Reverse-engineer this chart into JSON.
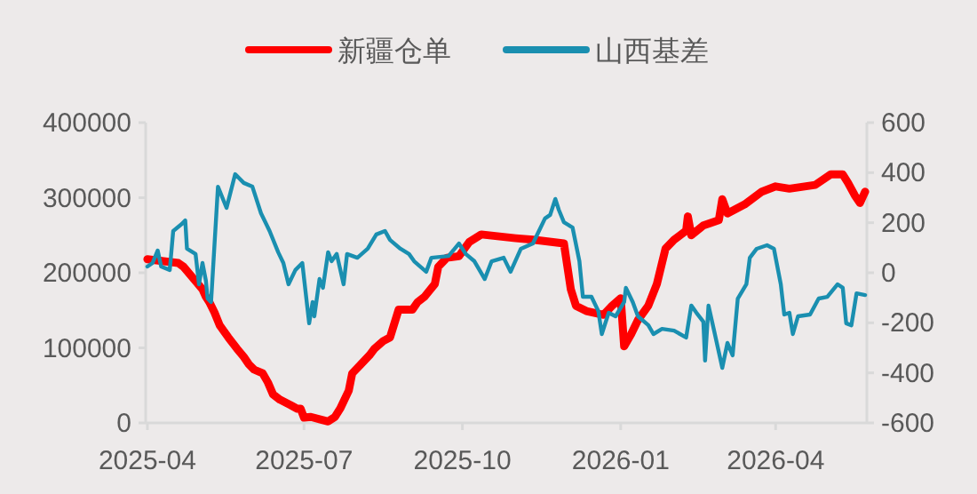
{
  "chart_data": {
    "type": "line",
    "legend": "top",
    "xlim": [
      "2025-03-31",
      "2026-05-24"
    ],
    "xticks": [
      "2025-04",
      "2025-07",
      "2025-10",
      "2026-01",
      "2026-04"
    ],
    "ylim": [
      0,
      400000
    ],
    "yticks": [
      0,
      100000,
      200000,
      300000,
      400000
    ],
    "y2lim": [
      -600,
      600
    ],
    "y2ticks": [
      -600,
      -400,
      -200,
      0,
      200,
      400,
      600
    ],
    "series": [
      {
        "name": "新疆仓单",
        "color": "#ff0000",
        "x": [
          "2025-04-01",
          "2025-04-19",
          "2025-04-22",
          "2025-04-29",
          "2025-05-03",
          "2025-05-05",
          "2025-05-07",
          "2025-05-10",
          "2025-05-13",
          "2025-05-18",
          "2025-05-23",
          "2025-05-27",
          "2025-05-30",
          "2025-06-02",
          "2025-06-07",
          "2025-06-10",
          "2025-06-13",
          "2025-06-17",
          "2025-06-23",
          "2025-06-27",
          "2025-06-29",
          "2025-07-01",
          "2025-07-05",
          "2025-07-10",
          "2025-07-15",
          "2025-07-19",
          "2025-07-22",
          "2025-07-27",
          "2025-07-29",
          "2025-08-03",
          "2025-08-08",
          "2025-08-11",
          "2025-08-16",
          "2025-08-20",
          "2025-08-25",
          "2025-09-02",
          "2025-09-05",
          "2025-09-09",
          "2025-09-15",
          "2025-09-17",
          "2025-09-22",
          "2025-09-29",
          "2025-10-05",
          "2025-10-12",
          "2025-11-01",
          "2025-11-11",
          "2025-11-29",
          "2025-12-03",
          "2025-12-06",
          "2025-12-12",
          "2025-12-22",
          "2025-12-27",
          "2026-01-01",
          "2026-01-03",
          "2026-01-07",
          "2026-01-11",
          "2026-01-17",
          "2026-01-22",
          "2026-01-27",
          "2026-02-01",
          "2026-02-08",
          "2026-02-09",
          "2026-02-11",
          "2026-02-18",
          "2026-02-27",
          "2026-03-01",
          "2026-03-04",
          "2026-03-14",
          "2026-03-24",
          "2026-04-01",
          "2026-04-09",
          "2026-04-24",
          "2026-05-03",
          "2026-05-10",
          "2026-05-13",
          "2026-05-17",
          "2026-05-20",
          "2026-05-23"
        ],
        "values": [
          218000,
          213000,
          208000,
          189000,
          178000,
          168000,
          161000,
          147000,
          130000,
          114000,
          99000,
          88000,
          78000,
          71000,
          66000,
          54000,
          38000,
          31000,
          24000,
          19000,
          19000,
          7000,
          8000,
          5000,
          2000,
          8000,
          19000,
          43000,
          66000,
          78000,
          90000,
          99000,
          109000,
          114000,
          151000,
          151000,
          161000,
          168000,
          185000,
          208000,
          220000,
          222000,
          241000,
          251000,
          246000,
          244000,
          239000,
          178000,
          156000,
          149000,
          144000,
          156000,
          166000,
          102000,
          118000,
          137000,
          156000,
          185000,
          232000,
          244000,
          256000,
          275000,
          250000,
          263000,
          270000,
          298000,
          279000,
          291000,
          308000,
          315000,
          312000,
          317000,
          331000,
          331000,
          320000,
          303000,
          293000,
          308000
        ]
      },
      {
        "name": "山西基差",
        "color": "#1a8fb0",
        "axis": "y2",
        "x": [
          "2025-04-01",
          "2025-04-04",
          "2025-04-07",
          "2025-04-09",
          "2025-04-14",
          "2025-04-16",
          "2025-04-21",
          "2025-04-23",
          "2025-04-24",
          "2025-04-29",
          "2025-05-01",
          "2025-05-03",
          "2025-05-05",
          "2025-05-06",
          "2025-05-08",
          "2025-05-12",
          "2025-05-17",
          "2025-05-22",
          "2025-05-27",
          "2025-06-01",
          "2025-06-06",
          "2025-06-11",
          "2025-06-16",
          "2025-06-19",
          "2025-06-22",
          "2025-06-26",
          "2025-06-30",
          "2025-07-04",
          "2025-07-06",
          "2025-07-07",
          "2025-07-10",
          "2025-07-12",
          "2025-07-15",
          "2025-07-17",
          "2025-07-20",
          "2025-07-24",
          "2025-07-26",
          "2025-08-01",
          "2025-08-07",
          "2025-08-12",
          "2025-08-17",
          "2025-08-20",
          "2025-08-26",
          "2025-08-31",
          "2025-09-03",
          "2025-09-10",
          "2025-09-13",
          "2025-09-23",
          "2025-09-29",
          "2025-10-03",
          "2025-10-08",
          "2025-10-14",
          "2025-10-18",
          "2025-10-25",
          "2025-10-29",
          "2025-11-04",
          "2025-11-11",
          "2025-11-18",
          "2025-11-21",
          "2025-11-24",
          "2025-11-26",
          "2025-11-29",
          "2025-12-04",
          "2025-12-08",
          "2025-12-10",
          "2025-12-15",
          "2025-12-19",
          "2025-12-21",
          "2025-12-25",
          "2025-12-29",
          "2026-01-03",
          "2026-01-04",
          "2026-01-08",
          "2026-01-11",
          "2026-01-17",
          "2026-01-20",
          "2026-01-25",
          "2026-02-01",
          "2026-02-08",
          "2026-02-11",
          "2026-02-14",
          "2026-02-18",
          "2026-02-19",
          "2026-02-21",
          "2026-02-24",
          "2026-03-01",
          "2026-03-04",
          "2026-03-07",
          "2026-03-10",
          "2026-03-15",
          "2026-03-17",
          "2026-03-21",
          "2026-03-27",
          "2026-03-31",
          "2026-04-04",
          "2026-04-06",
          "2026-04-09",
          "2026-04-11",
          "2026-04-14",
          "2026-04-21",
          "2026-04-26",
          "2026-05-01",
          "2026-05-07",
          "2026-05-10",
          "2026-05-12",
          "2026-05-15",
          "2026-05-18",
          "2026-05-23"
        ],
        "values": [
          25,
          39,
          89,
          25,
          11,
          167,
          195,
          209,
          96,
          75,
          -46,
          39,
          -32,
          -103,
          -117,
          344,
          259,
          394,
          359,
          344,
          238,
          167,
          82,
          39,
          -46,
          11,
          39,
          -202,
          -117,
          -174,
          -25,
          -60,
          82,
          46,
          75,
          -46,
          75,
          60,
          96,
          153,
          167,
          131,
          96,
          75,
          46,
          4,
          60,
          67,
          117,
          75,
          46,
          -25,
          46,
          60,
          4,
          96,
          117,
          217,
          231,
          295,
          252,
          202,
          181,
          46,
          -96,
          -96,
          -153,
          -245,
          -160,
          -174,
          -117,
          -60,
          -117,
          -174,
          -209,
          -245,
          -224,
          -231,
          -259,
          -131,
          -160,
          -196,
          -351,
          -131,
          -224,
          -380,
          -280,
          -330,
          -103,
          -46,
          60,
          96,
          110,
          96,
          -46,
          -167,
          -160,
          -245,
          -174,
          -167,
          -103,
          -96,
          -46,
          -60,
          -202,
          -210,
          -82,
          -89
        ]
      }
    ]
  }
}
